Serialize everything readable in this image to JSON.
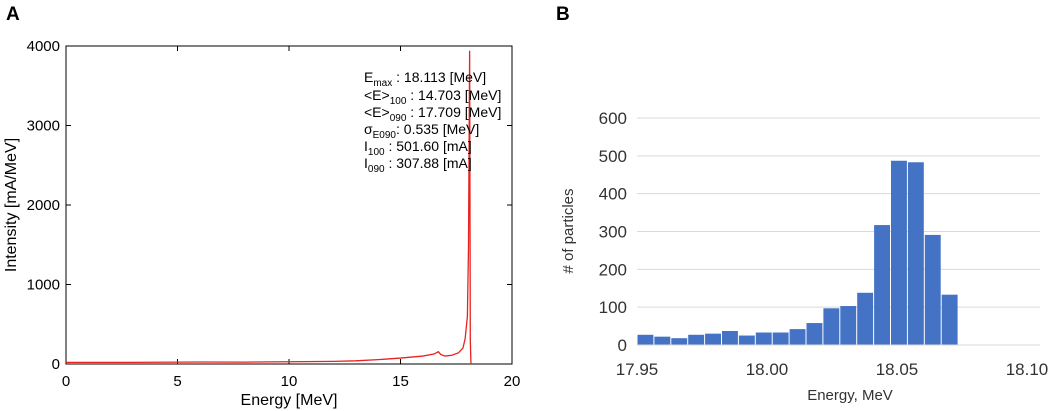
{
  "chart_data": [
    {
      "panel_label": "A",
      "type": "line",
      "xlabel": "Energy [MeV]",
      "ylabel": "Intensity [mA/MeV]",
      "xlim": [
        0,
        20
      ],
      "ylim": [
        0,
        4000
      ],
      "x_ticks": [
        0,
        5,
        10,
        15,
        20
      ],
      "y_ticks": [
        0,
        1000,
        2000,
        3000,
        4000
      ],
      "series": [
        {
          "name": "intensity",
          "color": "#e8231e",
          "points": [
            [
              0,
              20
            ],
            [
              2,
              20
            ],
            [
              4,
              22
            ],
            [
              6,
              25
            ],
            [
              8,
              24
            ],
            [
              10,
              28
            ],
            [
              12,
              33
            ],
            [
              13,
              40
            ],
            [
              14,
              55
            ],
            [
              15,
              75
            ],
            [
              16,
              100
            ],
            [
              16.5,
              125
            ],
            [
              16.7,
              155
            ],
            [
              16.8,
              120
            ],
            [
              17.0,
              100
            ],
            [
              17.3,
              110
            ],
            [
              17.6,
              140
            ],
            [
              17.8,
              200
            ],
            [
              17.9,
              320
            ],
            [
              18.0,
              600
            ],
            [
              18.05,
              1500
            ],
            [
              18.1,
              3940
            ],
            [
              18.13,
              300
            ],
            [
              18.16,
              0
            ]
          ]
        }
      ],
      "annotations": [
        {
          "symbol": "E",
          "sub": "max",
          "text": " : 18.113 [MeV]"
        },
        {
          "symbol": "<E>",
          "sub": "100",
          "text": " : 14.703 [MeV]"
        },
        {
          "symbol": "<E>",
          "sub": "090",
          "text": " : 17.709 [MeV]"
        },
        {
          "symbol": "σ",
          "sub": "E090",
          "text": ": 0.535 [MeV]"
        },
        {
          "symbol": "I",
          "sub": "100",
          "text": " : 501.60 [mA]"
        },
        {
          "symbol": "I",
          "sub": "090",
          "text": " : 307.88 [mA]"
        }
      ]
    },
    {
      "panel_label": "B",
      "type": "bar",
      "xlabel": "Energy, MeV",
      "ylabel": "# of particles",
      "xlim": [
        17.95,
        18.105
      ],
      "ylim": [
        0,
        600
      ],
      "x_ticks": [
        "17.95",
        "18.00",
        "18.05",
        "18.10"
      ],
      "y_ticks": [
        0,
        100,
        200,
        300,
        400,
        500,
        600
      ],
      "bar_color": "#4472c4",
      "bin_start": 17.95,
      "bin_width": 0.0065,
      "values": [
        27,
        22,
        18,
        27,
        30,
        37,
        25,
        33,
        33,
        42,
        58,
        97,
        103,
        138,
        317,
        487,
        483,
        291,
        133
      ]
    }
  ]
}
